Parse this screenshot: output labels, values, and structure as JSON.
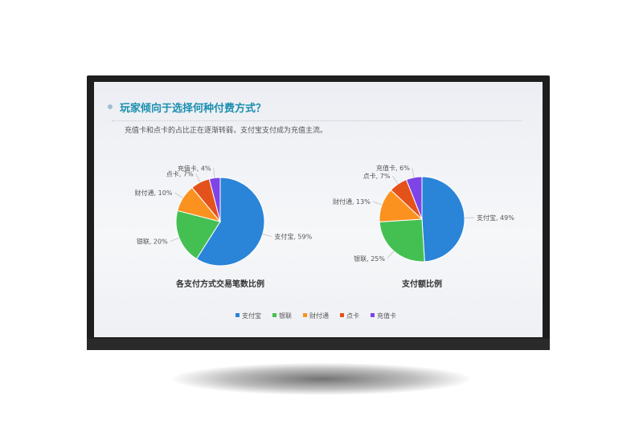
{
  "header": {
    "title": "玩家倾向于选择何种付费方式？",
    "subtitle": "充值卡和点卡的占比正在逐渐转弱，支付宝支付成为充值主流。"
  },
  "chart_data": [
    {
      "type": "pie",
      "title": "各支付方式交易笔数比例",
      "categories": [
        "支付宝",
        "银联",
        "财付通",
        "点卡",
        "充值卡"
      ],
      "values": [
        59,
        20,
        10,
        7,
        4
      ],
      "labels": [
        "支付宝, 59%",
        "银联, 20%",
        "财付通, 10%",
        "点卡, 7%",
        "充值卡, 4%"
      ]
    },
    {
      "type": "pie",
      "title": "支付额比例",
      "categories": [
        "支付宝",
        "银联",
        "财付通",
        "点卡",
        "充值卡"
      ],
      "values": [
        49,
        25,
        13,
        7,
        6
      ],
      "labels": [
        "支付宝, 49%",
        "银联, 25%",
        "财付通, 13%",
        "点卡, 7%",
        "充值卡, 6%"
      ]
    }
  ],
  "legend": {
    "placement": "bottom",
    "items": [
      "支付宝",
      "银联",
      "财付通",
      "点卡",
      "充值卡"
    ]
  },
  "colors": [
    "#2a84d8",
    "#44c053",
    "#fb9220",
    "#e4521c",
    "#7e44e8"
  ]
}
